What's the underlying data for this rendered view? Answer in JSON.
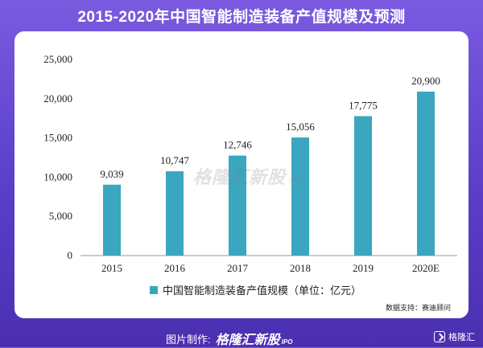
{
  "title": "2015-2020年中国智能制造装备产值规模及预测",
  "watermark": {
    "text": "格隆汇新股",
    "sub": "IPO"
  },
  "source_text": "数据支持：赛迪顾问",
  "footer": {
    "credit_label": "图片制作:",
    "brand": "格隆汇新股",
    "brand_sub": "IPO",
    "logo_text": "格隆汇"
  },
  "colors": {
    "bar": "#3aa6c0",
    "axis": "#999999"
  },
  "chart_data": {
    "type": "bar",
    "categories": [
      "2015",
      "2016",
      "2017",
      "2018",
      "2019",
      "2020E"
    ],
    "series": [
      {
        "name": "中国智能制造装备产值规模（单位：亿元）",
        "values": [
          9039,
          10747,
          12746,
          15056,
          17775,
          20900
        ]
      }
    ],
    "data_labels": [
      "9,039",
      "10,747",
      "12,746",
      "15,056",
      "17,775",
      "20,900"
    ],
    "yticks": [
      "0",
      "5,000",
      "10,000",
      "15,000",
      "20,000",
      "25,000"
    ],
    "ylim": [
      0,
      25000
    ],
    "legend_position": "bottom-center",
    "grid": false
  }
}
